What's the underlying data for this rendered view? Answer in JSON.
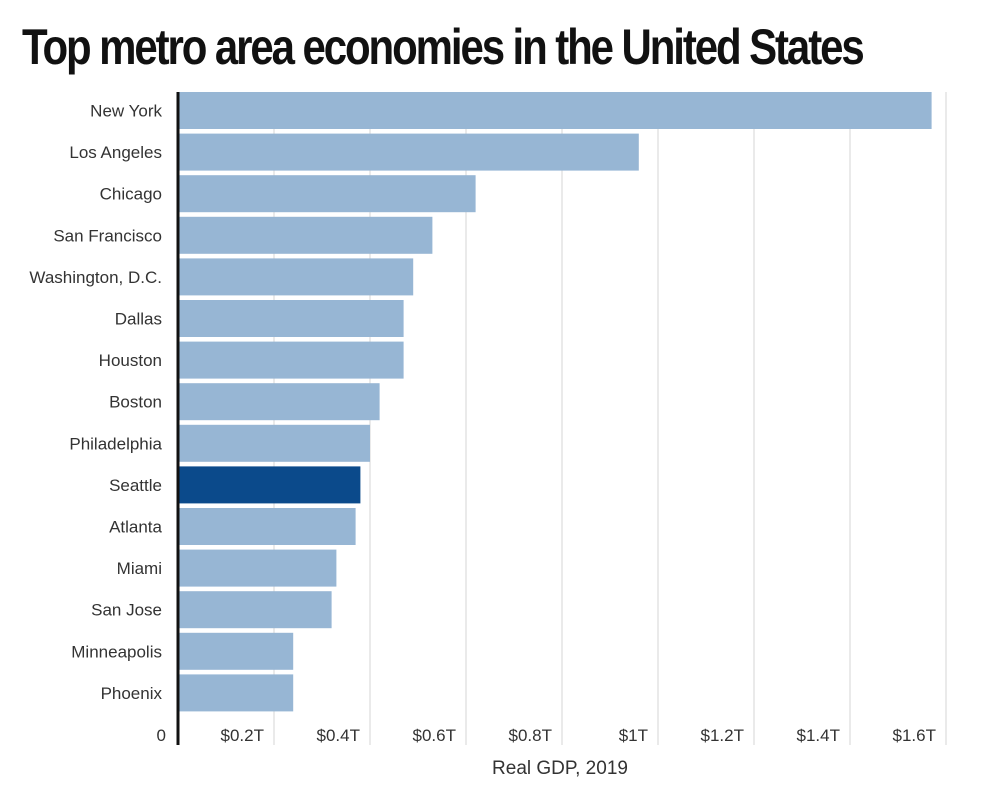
{
  "chart_data": {
    "type": "bar",
    "orientation": "horizontal",
    "title": "Top metro area economies in the United States",
    "xlabel": "Real GDP, 2019",
    "ylabel": "",
    "categories": [
      "New York",
      "Los Angeles",
      "Chicago",
      "San Francisco",
      "Washington, D.C.",
      "Dallas",
      "Houston",
      "Boston",
      "Philadelphia",
      "Seattle",
      "Atlanta",
      "Miami",
      "San Jose",
      "Minneapolis",
      "Phoenix"
    ],
    "values": [
      1.57,
      0.96,
      0.62,
      0.53,
      0.49,
      0.47,
      0.47,
      0.42,
      0.4,
      0.38,
      0.37,
      0.33,
      0.32,
      0.24,
      0.24
    ],
    "units": "trillion USD",
    "highlight": "Seattle",
    "xlim": [
      0,
      1.6
    ],
    "ticks": [
      0,
      0.2,
      0.4,
      0.6,
      0.8,
      1.0,
      1.2,
      1.4,
      1.6
    ],
    "tick_labels": [
      "0",
      "$0.2T",
      "$0.4T",
      "$0.6T",
      "$0.8T",
      "$1T",
      "$1.2T",
      "$1.4T",
      "$1.6T"
    ],
    "grid": true,
    "colors": {
      "bar": "#97b6d4",
      "highlight": "#0b4a8b",
      "grid": "#d4d4d4",
      "axis": "#111111"
    }
  }
}
